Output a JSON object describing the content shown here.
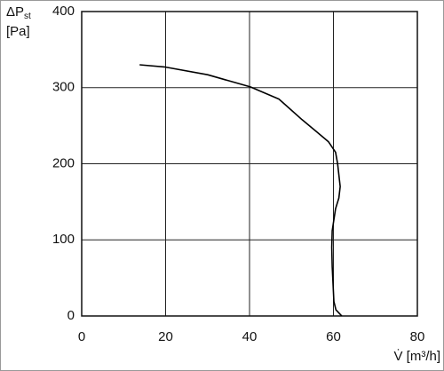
{
  "chart_data": {
    "type": "line",
    "y_label": "ΔP",
    "y_label_sub": "st",
    "y_label_unit": "[Pa]",
    "x_label": "V̇ [m³/h]",
    "x": [
      13.8,
      20,
      30,
      40.2,
      47,
      52.5,
      56,
      58.8,
      60.5,
      61,
      61.6,
      61.3,
      60.5,
      59.7,
      59.6,
      59.7,
      60.1,
      60.6,
      62
    ],
    "series": [
      {
        "color": "#000000",
        "values": [
          330,
          327,
          317,
          301,
          285,
          258,
          242,
          229,
          215,
          200,
          170,
          155,
          141,
          112,
          90,
          65,
          19,
          8,
          0
        ]
      }
    ],
    "xlim": [
      0,
      80
    ],
    "ylim": [
      0,
      400
    ],
    "xticks": [
      0,
      20,
      40,
      60,
      80
    ],
    "yticks": [
      0,
      100,
      200,
      300,
      400
    ],
    "grid": true
  }
}
